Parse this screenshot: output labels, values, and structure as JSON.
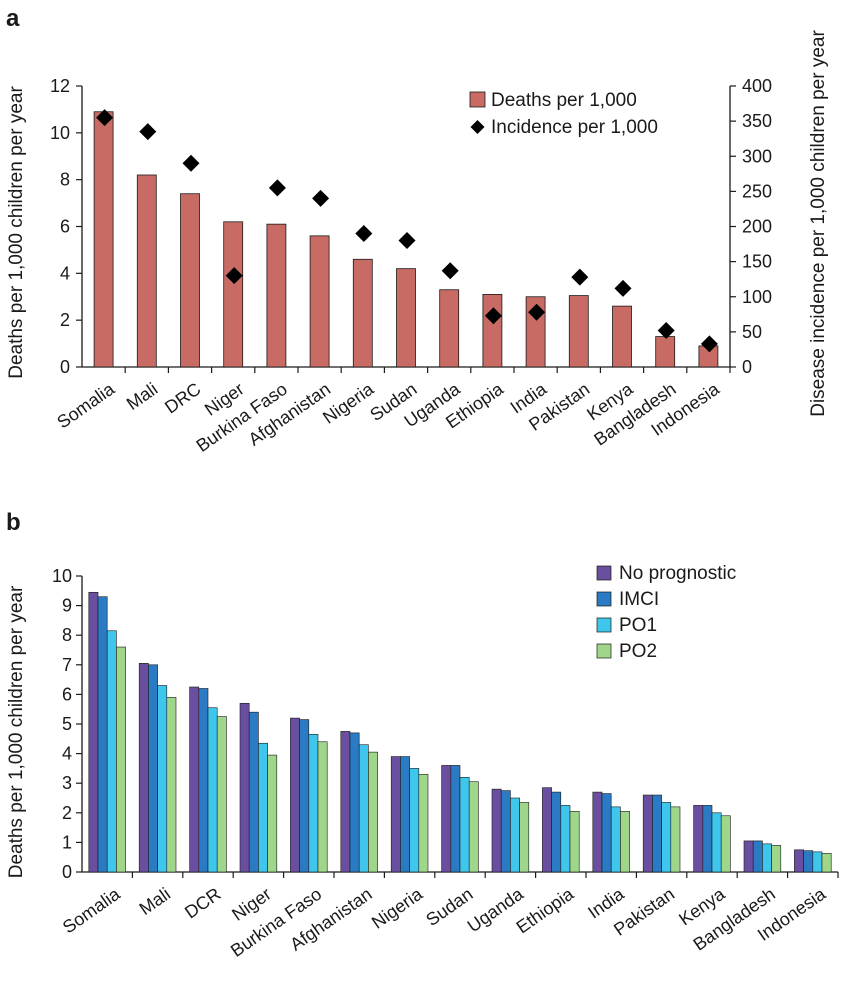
{
  "chart_data": [
    {
      "panel": "a",
      "type": "bar",
      "categories": [
        "Somalia",
        "Mali",
        "DRC",
        "Niger",
        "Burkina Faso",
        "Afghanistan",
        "Nigeria",
        "Sudan",
        "Uganda",
        "Ethiopia",
        "India",
        "Pakistan",
        "Kenya",
        "Bangladesh",
        "Indonesia"
      ],
      "series": [
        {
          "name": "Deaths per 1,000",
          "type": "bar",
          "axis": "left",
          "color": "#c86b65",
          "values": [
            10.9,
            8.2,
            7.4,
            6.2,
            6.1,
            5.6,
            4.6,
            4.2,
            3.3,
            3.1,
            3.0,
            3.05,
            2.6,
            1.3,
            0.9
          ]
        },
        {
          "name": "Incidence per 1,000",
          "type": "scatter",
          "marker": "diamond",
          "axis": "right",
          "color": "#000000",
          "values": [
            355,
            335,
            290,
            130,
            255,
            240,
            190,
            180,
            137,
            73,
            78,
            128,
            112,
            52,
            33
          ]
        }
      ],
      "ylabel": "Deaths per 1,000 children per year",
      "ylabel_right": "Disease incidence per 1,000 children per year",
      "ylim": [
        0,
        12
      ],
      "ylim_right": [
        0,
        400
      ],
      "yticks": [
        "0",
        "2",
        "4",
        "6",
        "8",
        "10",
        "12"
      ],
      "yticks_right": [
        "0",
        "50",
        "100",
        "150",
        "200",
        "250",
        "300",
        "350",
        "400"
      ],
      "legend_position": "top-right",
      "grid": false
    },
    {
      "panel": "b",
      "type": "bar",
      "categories": [
        "Somalia",
        "Mali",
        "DCR",
        "Niger",
        "Burkina Faso",
        "Afghanistan",
        "Nigeria",
        "Sudan",
        "Uganda",
        "Ethiopia",
        "India",
        "Pakistan",
        "Kenya",
        "Bangladesh",
        "Indonesia"
      ],
      "series": [
        {
          "name": "No prognostic",
          "color": "#6a4ea0",
          "values": [
            9.45,
            7.05,
            6.25,
            5.7,
            5.2,
            4.75,
            3.9,
            3.6,
            2.8,
            2.85,
            2.7,
            2.6,
            2.25,
            1.05,
            0.75
          ]
        },
        {
          "name": "IMCI",
          "color": "#2a7ac4",
          "values": [
            9.3,
            7.0,
            6.2,
            5.4,
            5.15,
            4.7,
            3.9,
            3.6,
            2.75,
            2.7,
            2.65,
            2.6,
            2.25,
            1.05,
            0.72
          ]
        },
        {
          "name": "PO1",
          "color": "#3fc6ec",
          "values": [
            8.15,
            6.3,
            5.55,
            4.35,
            4.65,
            4.3,
            3.5,
            3.2,
            2.5,
            2.25,
            2.2,
            2.35,
            2.0,
            0.95,
            0.68
          ]
        },
        {
          "name": "PO2",
          "color": "#9fd68a",
          "values": [
            7.6,
            5.9,
            5.25,
            3.95,
            4.4,
            4.05,
            3.3,
            3.05,
            2.35,
            2.05,
            2.05,
            2.2,
            1.9,
            0.9,
            0.63
          ]
        }
      ],
      "ylabel": "Deaths per 1,000 children per year",
      "ylim": [
        0,
        10
      ],
      "yticks": [
        "0",
        "1",
        "2",
        "3",
        "4",
        "5",
        "6",
        "7",
        "8",
        "9",
        "10"
      ],
      "legend_position": "top-right",
      "grid": false
    }
  ]
}
